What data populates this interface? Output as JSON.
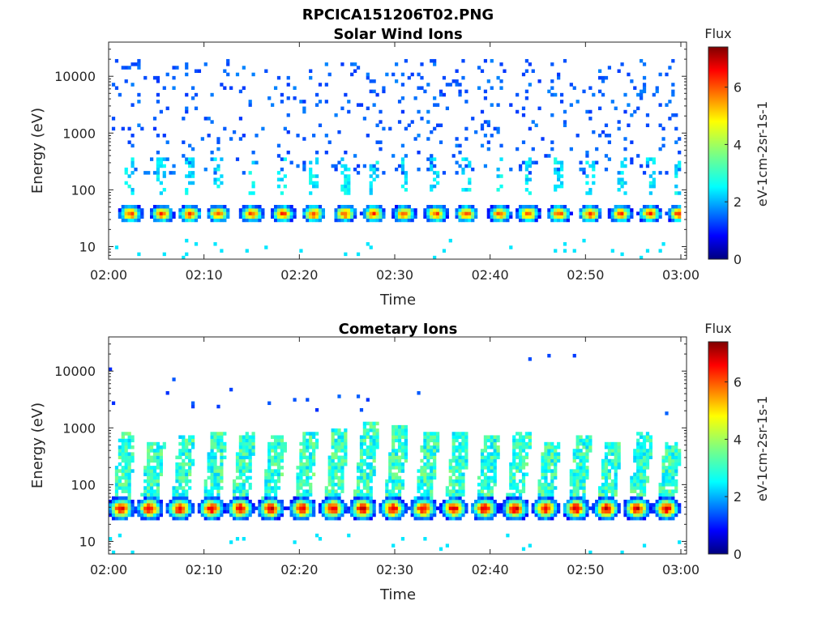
{
  "figure_title": "RPCICA151206T02.PNG",
  "chart_data": [
    {
      "type": "heatmap",
      "title": "Solar Wind Ions",
      "xlabel": "Time",
      "ylabel": "Energy (eV)",
      "yscale": "log",
      "ylim": [
        6,
        40000
      ],
      "x_ticks": [
        "02:00",
        "02:10",
        "02:20",
        "02:30",
        "02:40",
        "02:50",
        "03:00"
      ],
      "y_ticks": [
        "10",
        "100",
        "1000",
        "10000"
      ],
      "colorbar": {
        "title": "Flux",
        "label": "eV-1cm-2sr-1s-1",
        "ticks": [
          "0",
          "2",
          "4",
          "6"
        ],
        "range": [
          0,
          7.4
        ],
        "colormap": "jet"
      },
      "pulse_times_min": [
        2.3,
        5.6,
        8.5,
        11.5,
        15.0,
        18.3,
        21.5,
        24.8,
        27.8,
        31.0,
        34.3,
        37.5,
        41.0,
        44.0,
        47.2,
        50.5,
        53.7,
        56.8,
        59.8
      ],
      "peak_energy_eV": 38,
      "peak_flux": 6.0,
      "high_energy_range_eV": [
        200,
        20000
      ],
      "high_energy_flux": 1.3
    },
    {
      "type": "heatmap",
      "title": "Cometary Ions",
      "xlabel": "Time",
      "ylabel": "Energy (eV)",
      "yscale": "log",
      "ylim": [
        6,
        40000
      ],
      "x_ticks": [
        "02:00",
        "02:10",
        "02:20",
        "02:30",
        "02:40",
        "02:50",
        "03:00"
      ],
      "y_ticks": [
        "10",
        "100",
        "1000",
        "10000"
      ],
      "colorbar": {
        "title": "Flux",
        "label": "eV-1cm-2sr-1s-1",
        "ticks": [
          "0",
          "2",
          "4",
          "6"
        ],
        "range": [
          0,
          7.4
        ],
        "colormap": "jet"
      },
      "pulse_times_min": [
        1.3,
        4.3,
        7.5,
        10.8,
        13.8,
        17.0,
        20.3,
        23.5,
        26.6,
        29.8,
        33.0,
        36.2,
        39.4,
        42.6,
        45.8,
        49.0,
        52.2,
        55.4,
        58.5
      ],
      "peak_energy_eV": 38,
      "peak_flux": 6.8,
      "plume_top_eV": [
        800,
        600,
        700,
        900,
        800,
        700,
        900,
        1000,
        1200,
        1100,
        900,
        800,
        700,
        900,
        600,
        700,
        600,
        800,
        600
      ]
    }
  ]
}
